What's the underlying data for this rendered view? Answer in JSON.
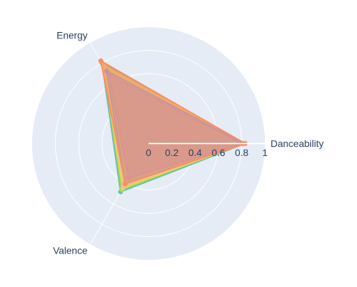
{
  "chart_data": {
    "type": "radar",
    "axes": [
      "Danceability",
      "Energy",
      "Valence"
    ],
    "radial_range": [
      0,
      1
    ],
    "radial_ticks": [
      "0",
      "0.2",
      "0.4",
      "0.6",
      "0.8",
      "1"
    ],
    "grid": true,
    "legend": "none",
    "colors": {
      "background": "#e5ecf6",
      "grid": "#ffffff",
      "text": "#2a3f5f"
    },
    "series": [
      {
        "values": [
          0.83,
          0.8,
          0.48
        ],
        "color": "#66c2a5"
      },
      {
        "values": [
          0.8,
          0.76,
          0.46
        ],
        "color": "#a6d854"
      },
      {
        "values": [
          0.82,
          0.78,
          0.44
        ],
        "color": "#ffd92f"
      },
      {
        "values": [
          0.81,
          0.77,
          0.43
        ],
        "color": "#e5c494"
      },
      {
        "values": [
          0.8,
          0.68,
          0.34
        ],
        "color": "#e78ac3"
      },
      {
        "values": [
          0.82,
          0.72,
          0.4
        ],
        "color": "#8da0cb"
      },
      {
        "values": [
          0.83,
          0.82,
          0.4
        ],
        "color": "#fc8d62"
      }
    ]
  }
}
